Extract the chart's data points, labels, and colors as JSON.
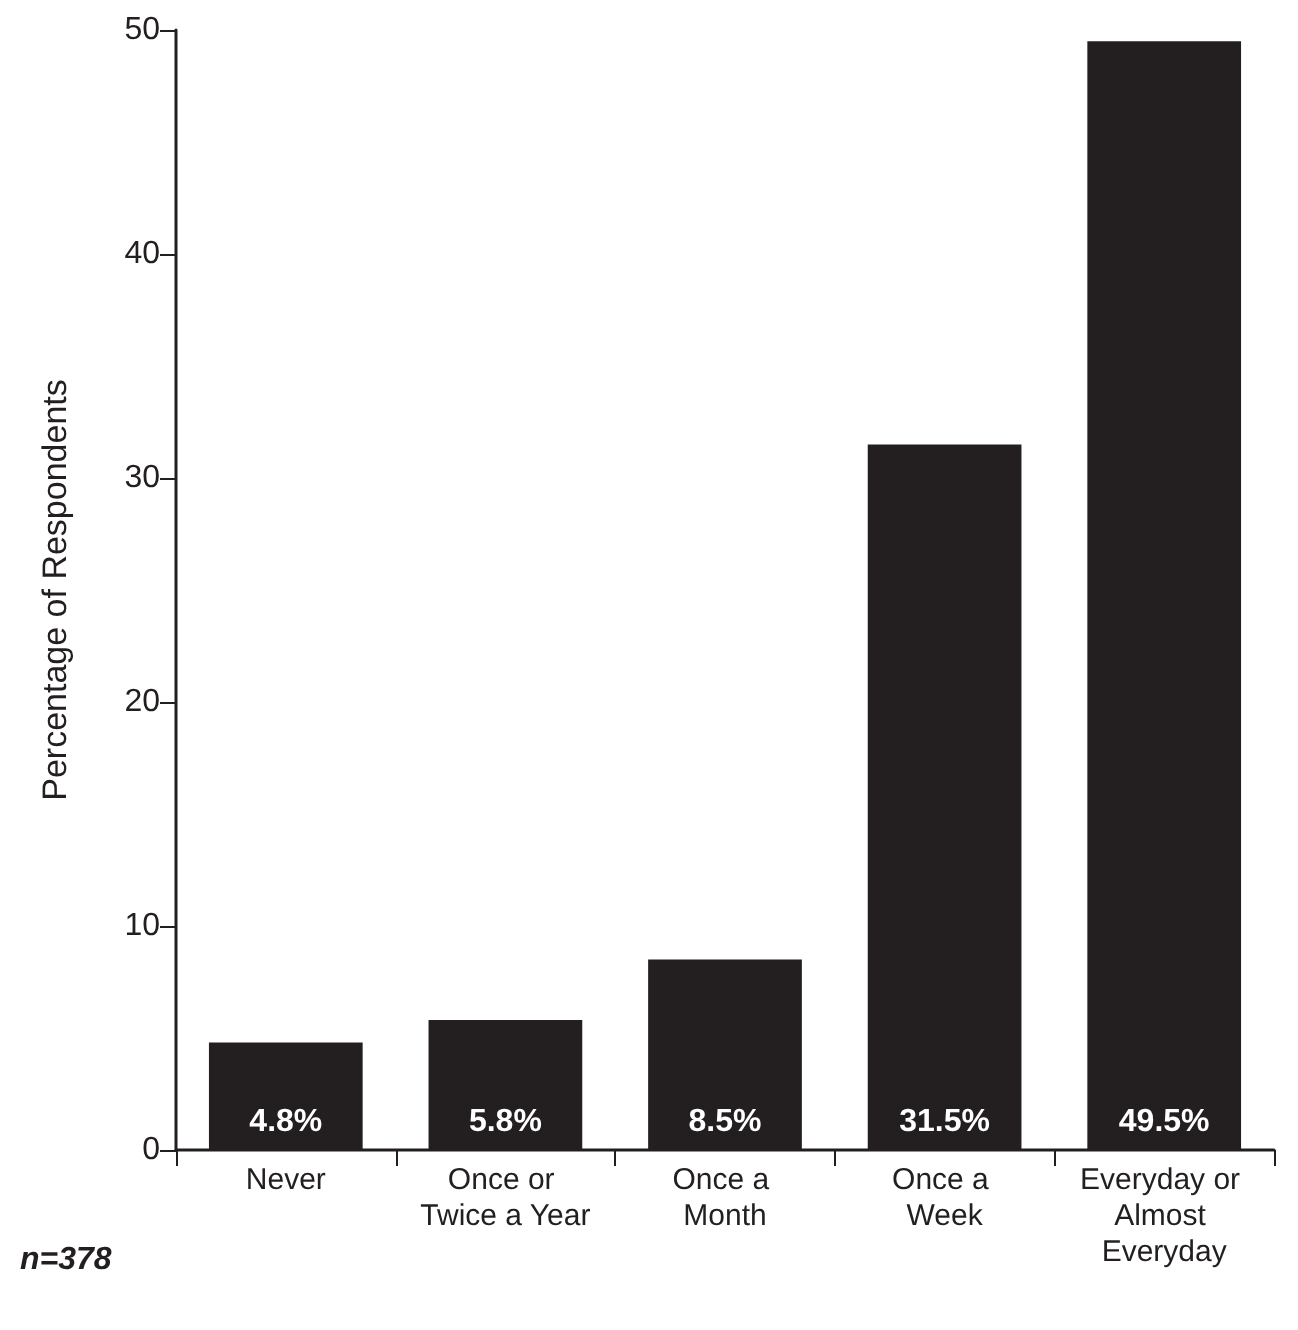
{
  "chart_data": {
    "type": "bar",
    "ylabel": "Percentage of Respondents",
    "categories": [
      "Never",
      "Once or Twice a Year",
      "Once a Month",
      "Once a Week",
      "Everyday or Almost Everyday"
    ],
    "values": [
      4.8,
      5.8,
      8.5,
      31.5,
      49.5
    ],
    "value_labels": [
      "4.8%",
      "5.8%",
      "8.5%",
      "31.5%",
      "49.5%"
    ],
    "color": "#231f20",
    "ylim": [
      0,
      50
    ],
    "yticks": [
      0,
      10,
      20,
      30,
      40,
      50
    ],
    "grid": false,
    "annotations": [
      "n=378"
    ]
  }
}
